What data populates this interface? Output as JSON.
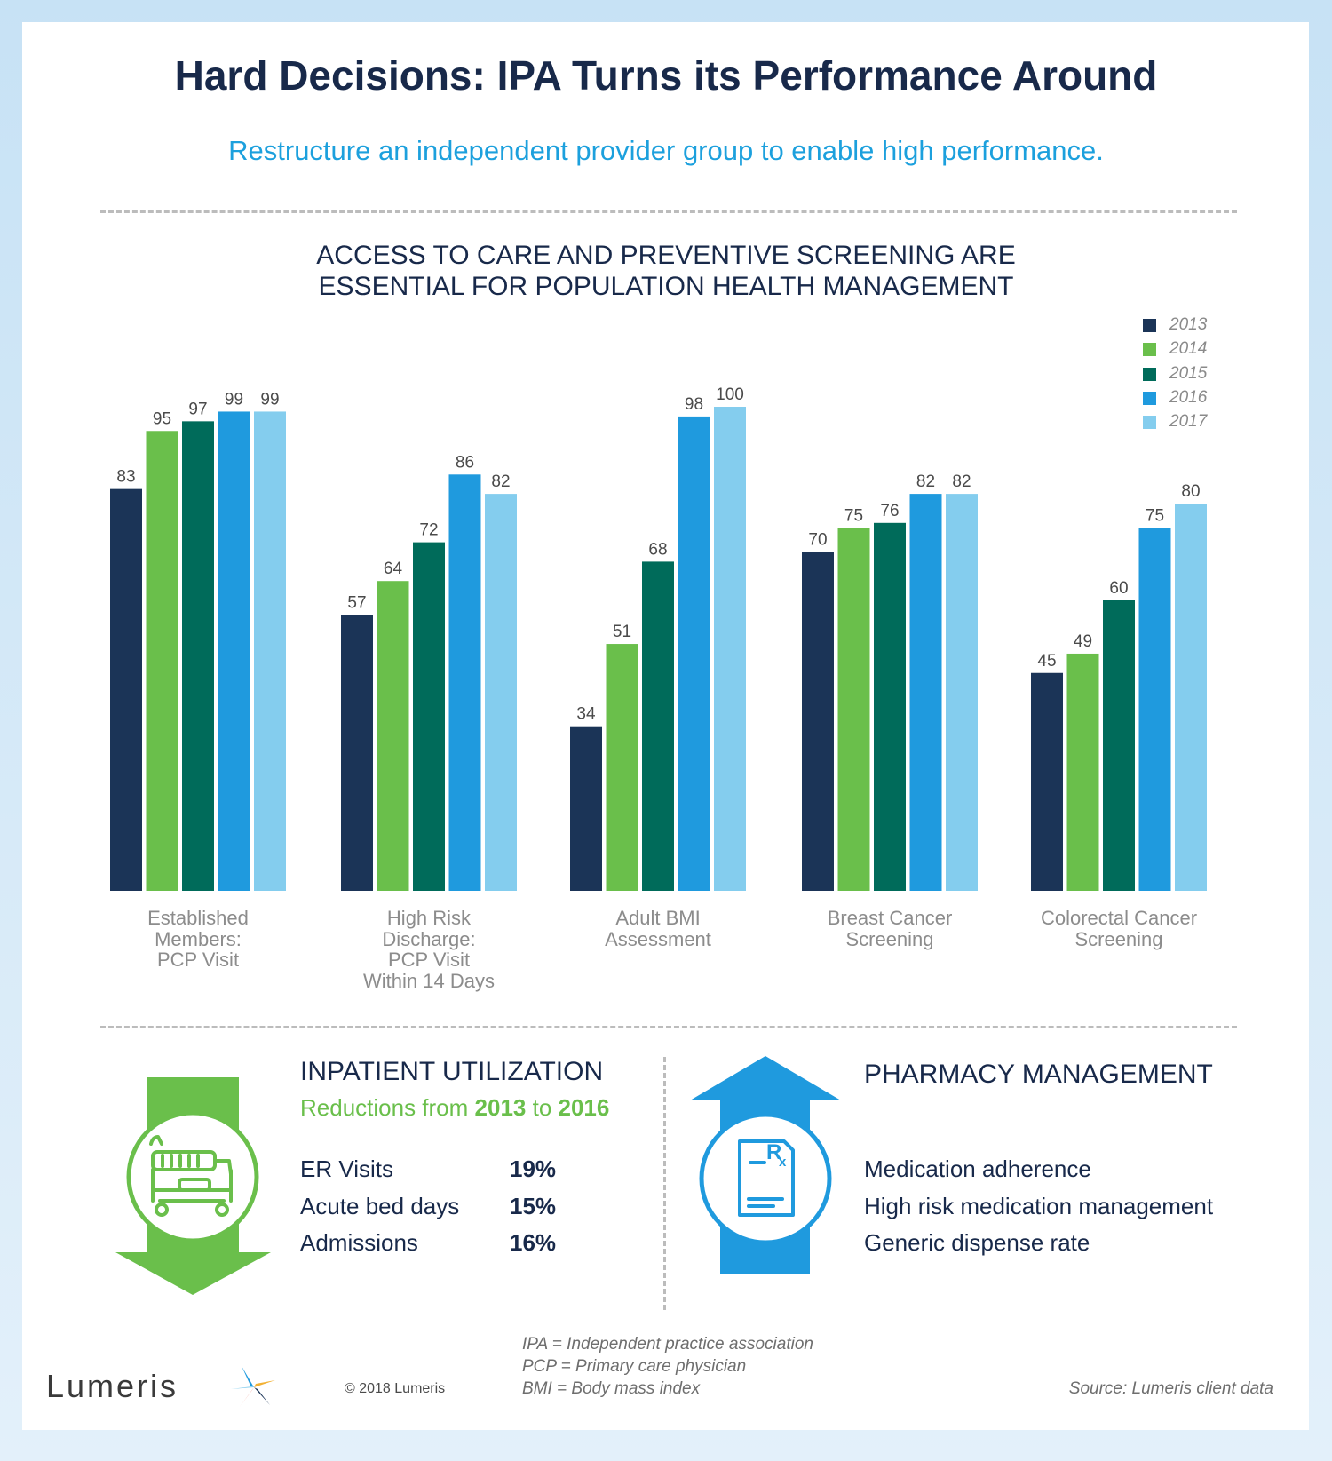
{
  "header": {
    "title": "Hard Decisions: IPA Turns its Performance Around",
    "subtitle": "Restructure an independent provider group to enable high performance."
  },
  "chart_section": {
    "title_line1": "ACCESS TO CARE AND PREVENTIVE SCREENING ARE",
    "title_line2": "ESSENTIAL FOR POPULATION HEALTH MANAGEMENT"
  },
  "chart_data": {
    "type": "bar",
    "title": "ACCESS TO CARE AND PREVENTIVE SCREENING ARE ESSENTIAL FOR POPULATION HEALTH MANAGEMENT",
    "categories": [
      [
        "Established",
        "Members:",
        "PCP Visit"
      ],
      [
        "High Risk",
        "Discharge:",
        "PCP Visit",
        "Within 14 Days"
      ],
      [
        "Adult BMI",
        "Assessment"
      ],
      [
        "Breast Cancer",
        "Screening"
      ],
      [
        "Colorectal Cancer",
        "Screening"
      ]
    ],
    "series": [
      {
        "name": "2013",
        "color": "#1b3457",
        "values": [
          83,
          57,
          34,
          70,
          45
        ]
      },
      {
        "name": "2014",
        "color": "#6abf4b",
        "values": [
          95,
          64,
          51,
          75,
          49
        ]
      },
      {
        "name": "2015",
        "color": "#006b5a",
        "values": [
          97,
          72,
          68,
          76,
          60
        ]
      },
      {
        "name": "2016",
        "color": "#1f9ade",
        "values": [
          99,
          86,
          98,
          82,
          75
        ]
      },
      {
        "name": "2017",
        "color": "#84cdee",
        "values": [
          99,
          82,
          100,
          82,
          80
        ]
      }
    ],
    "ylim": [
      0,
      100
    ],
    "legend_position": "top-right",
    "grid": false
  },
  "inpatient": {
    "title": "INPATIENT UTILIZATION",
    "sub_prefix": "Reductions from ",
    "sub_year1": "2013",
    "sub_mid": " to ",
    "sub_year2": "2016",
    "icon": "hospital-bed-icon",
    "arrow_color": "#6abf4b",
    "metrics": [
      {
        "label": "ER Visits",
        "value": "19%"
      },
      {
        "label": "Acute bed days",
        "value": "15%"
      },
      {
        "label": "Admissions",
        "value": "16%"
      }
    ]
  },
  "pharmacy": {
    "title": "PHARMACY MANAGEMENT",
    "icon": "prescription-icon",
    "arrow_color": "#1f9ade",
    "items": [
      "Medication adherence",
      "High risk medication management",
      "Generic dispense rate"
    ]
  },
  "footer": {
    "logo_text": "Lumeris",
    "copyright": "© 2018 Lumeris",
    "footnotes": [
      "IPA = Independent practice association",
      "PCP = Primary care physician",
      "BMI = Body mass index"
    ],
    "source": "Source: Lumeris client data"
  }
}
